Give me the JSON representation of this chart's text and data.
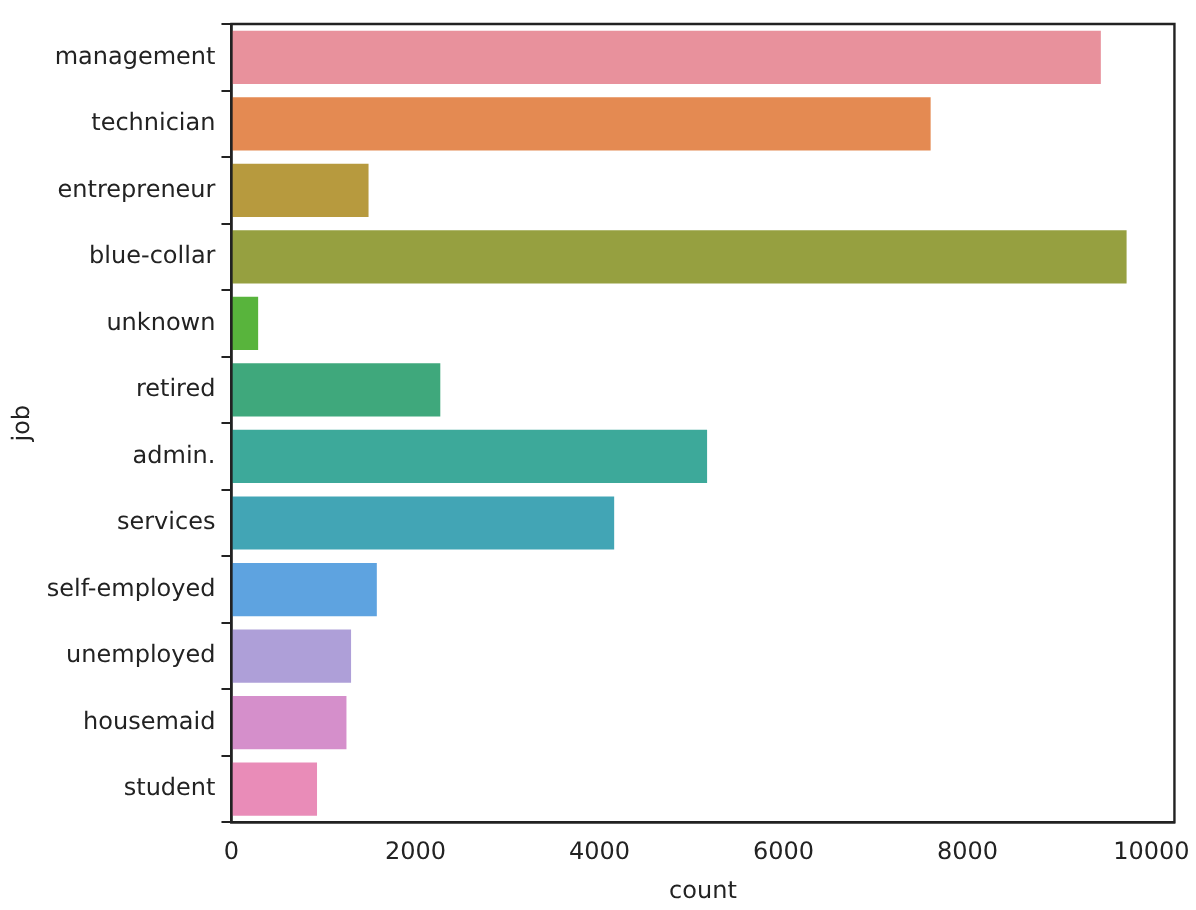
{
  "chart_data": {
    "type": "bar",
    "orientation": "horizontal",
    "xlabel": "count",
    "ylabel": "job",
    "categories": [
      "management",
      "technician",
      "entrepreneur",
      "blue-collar",
      "unknown",
      "retired",
      "admin.",
      "services",
      "self-employed",
      "unemployed",
      "housemaid",
      "student"
    ],
    "values": [
      9450,
      7600,
      1490,
      9730,
      290,
      2270,
      5170,
      4160,
      1580,
      1300,
      1250,
      930
    ],
    "colors": [
      "#e8919c",
      "#e48a52",
      "#b79a3e",
      "#96a040",
      "#58b43c",
      "#3fa87c",
      "#3da99a",
      "#42a5b5",
      "#5ea3e0",
      "#ae9fd8",
      "#d58fcb",
      "#e98cb8"
    ],
    "xlim": [
      0,
      10250
    ],
    "xticks": [
      0,
      2000,
      4000,
      6000,
      8000,
      10000
    ],
    "grid": false,
    "legend": false
  }
}
